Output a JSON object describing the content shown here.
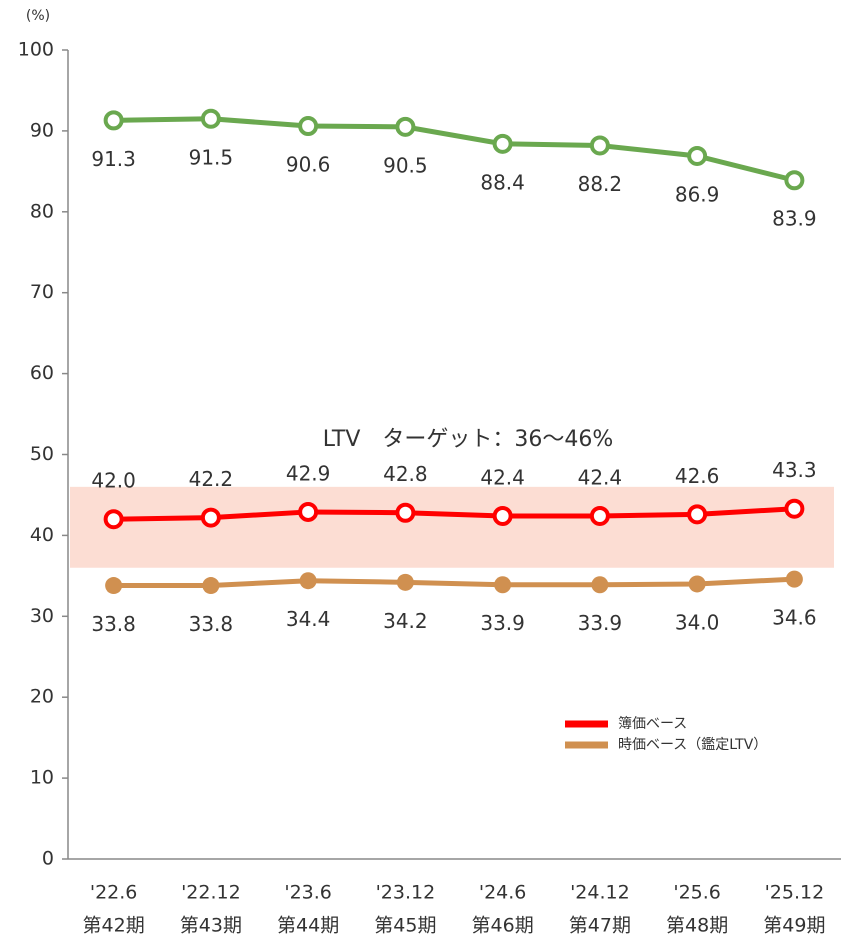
{
  "chart_data": {
    "type": "line",
    "unit_label": "(%)",
    "categories": [
      [
        "'22.6",
        "第42期"
      ],
      [
        "'22.12",
        "第43期"
      ],
      [
        "'23.6",
        "第44期"
      ],
      [
        "'23.12",
        "第45期"
      ],
      [
        "'24.6",
        "第46期"
      ],
      [
        "'24.12",
        "第47期"
      ],
      [
        "'25.6",
        "第48期"
      ],
      [
        "'25.12",
        "第49期"
      ]
    ],
    "series": [
      {
        "color": "#6aa84f",
        "marker": "hollow",
        "label_position": "below",
        "values": [
          91.3,
          91.5,
          90.6,
          90.5,
          88.4,
          88.2,
          86.9,
          83.9
        ],
        "value_labels": [
          "91.3",
          "91.5",
          "90.6",
          "90.5",
          "88.4",
          "88.2",
          "86.9",
          "83.9"
        ]
      },
      {
        "name": "簿価ベース",
        "color": "#ff0000",
        "marker": "hollow",
        "label_position": "above",
        "values": [
          42.0,
          42.2,
          42.9,
          42.8,
          42.4,
          42.4,
          42.6,
          43.3
        ],
        "value_labels": [
          "42.0",
          "42.2",
          "42.9",
          "42.8",
          "42.4",
          "42.4",
          "42.6",
          "43.3"
        ]
      },
      {
        "name": "時価ベース（鑑定LTV）",
        "color": "#d09050",
        "marker": "filled",
        "label_position": "below",
        "values": [
          33.8,
          33.8,
          34.4,
          34.2,
          33.9,
          33.9,
          34.0,
          34.6
        ],
        "value_labels": [
          "33.8",
          "33.8",
          "34.4",
          "34.2",
          "33.9",
          "33.9",
          "34.0",
          "34.6"
        ]
      }
    ],
    "target_band": {
      "range": [
        36,
        46
      ],
      "color": "#fbd5c8",
      "annotation": "LTV　ターゲット：36～46%"
    },
    "ylim": [
      0,
      100
    ],
    "yticks": [
      0,
      10,
      20,
      30,
      40,
      50,
      60,
      70,
      80,
      90,
      100
    ],
    "grid": false,
    "legend": "lower-right"
  }
}
